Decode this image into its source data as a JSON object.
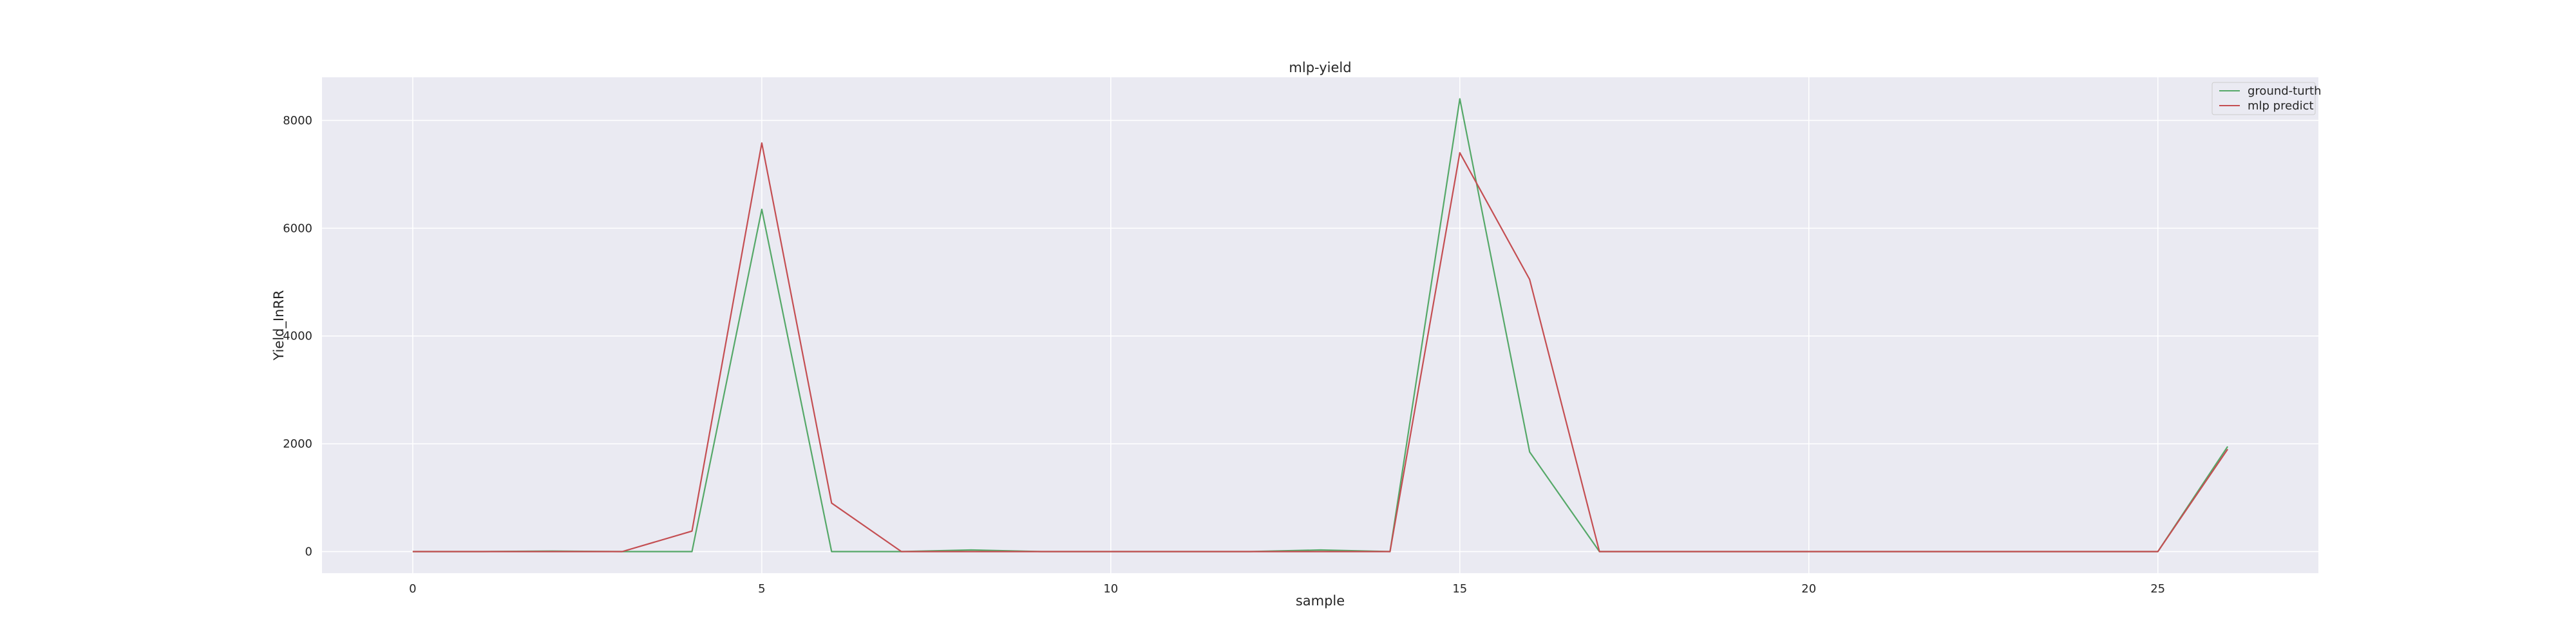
{
  "chart_data": {
    "type": "line",
    "title": "mlp-yield",
    "xlabel": "sample",
    "ylabel": "Yield_InRR",
    "xlim": [
      -1.3,
      27.3
    ],
    "ylim": [
      -400,
      8800
    ],
    "xticks": [
      0,
      5,
      10,
      15,
      20,
      25
    ],
    "yticks": [
      0,
      2000,
      4000,
      6000,
      8000
    ],
    "grid": true,
    "legend_position": "top-right",
    "x": [
      0,
      1,
      2,
      3,
      4,
      5,
      6,
      7,
      8,
      9,
      10,
      11,
      12,
      13,
      14,
      15,
      16,
      17,
      18,
      19,
      20,
      21,
      22,
      23,
      24,
      25,
      26
    ],
    "series": [
      {
        "name": "ground-turth",
        "color": "#55a868",
        "values": [
          0,
          0,
          10,
          0,
          0,
          6350,
          0,
          0,
          30,
          0,
          0,
          0,
          0,
          30,
          0,
          8400,
          1850,
          0,
          0,
          0,
          0,
          0,
          0,
          0,
          0,
          0,
          1950
        ]
      },
      {
        "name": "mlp predict",
        "color": "#c44e52",
        "values": [
          0,
          0,
          0,
          0,
          380,
          7580,
          900,
          0,
          0,
          0,
          0,
          0,
          0,
          0,
          0,
          7400,
          5050,
          0,
          0,
          0,
          0,
          0,
          0,
          0,
          0,
          0,
          1900
        ]
      }
    ]
  },
  "style": {
    "plot_background": "#eaeaf2",
    "grid_color": "#ffffff",
    "text_color": "#262626"
  }
}
